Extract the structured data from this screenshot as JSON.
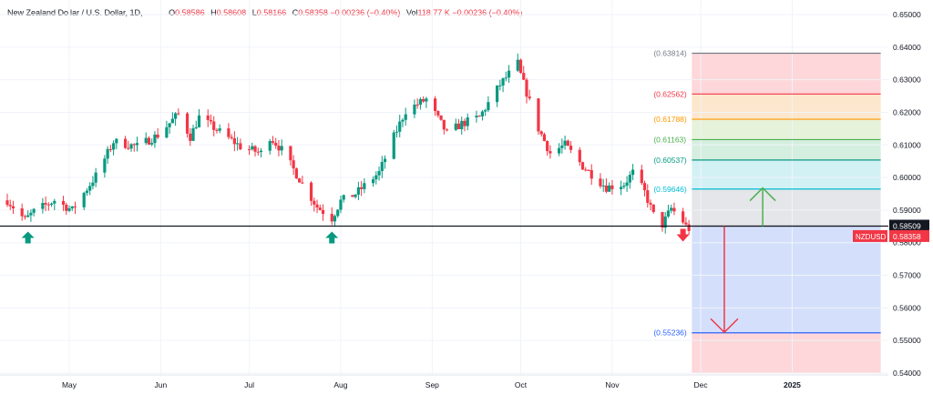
{
  "header": {
    "symbol": "New Zealand Dollar / U.S. Dollar, 1D,",
    "open_label": "O",
    "open": "0.58586",
    "high_label": "H",
    "high": "0.58608",
    "low_label": "L",
    "low": "0.58166",
    "close_label": "C",
    "close": "0.58358",
    "change": "−0.00236 (−0.40%)",
    "vol_label": "Vol",
    "vol": "118.77 K",
    "vol_change": "−0.00236 (−0.40%)"
  },
  "colors": {
    "up": "#089981",
    "down": "#f23645",
    "grid": "#f0f3fa",
    "axis_text": "#131722",
    "support_line": "#131722",
    "up_arrow": "#4caf50",
    "down_arrow": "#f23645",
    "marker": "#089981"
  },
  "chart_data": {
    "type": "candlestick",
    "symbol": "NZDUSD",
    "ylim": [
      0.54,
      0.65
    ],
    "y_ticks": [
      "0.65000",
      "0.64000",
      "0.63000",
      "0.62000",
      "0.61000",
      "0.60000",
      "0.59000",
      "0.58000",
      "0.57000",
      "0.56000",
      "0.55000",
      "0.54000"
    ],
    "x_ticks": [
      {
        "label": "May",
        "date": "2024-05-01"
      },
      {
        "label": "Jun",
        "date": "2024-06-01"
      },
      {
        "label": "Jul",
        "date": "2024-07-01"
      },
      {
        "label": "Aug",
        "date": "2024-08-01"
      },
      {
        "label": "Sep",
        "date": "2024-09-01"
      },
      {
        "label": "Oct",
        "date": "2024-10-01"
      },
      {
        "label": "Nov",
        "date": "2024-11-01"
      },
      {
        "label": "Dec",
        "date": "2024-12-01"
      },
      {
        "label": "2025",
        "date": "2025-01-01"
      }
    ],
    "x_range": [
      "2024-04-10",
      "2025-01-20"
    ],
    "path": [
      [
        "2024-04-10",
        0.593
      ],
      [
        "2024-04-16",
        0.587
      ],
      [
        "2024-04-19",
        0.5895
      ],
      [
        "2024-04-26",
        0.593
      ],
      [
        "2024-05-02",
        0.59
      ],
      [
        "2024-05-10",
        0.6005
      ],
      [
        "2024-05-16",
        0.611
      ],
      [
        "2024-05-24",
        0.6095
      ],
      [
        "2024-05-31",
        0.613
      ],
      [
        "2024-06-07",
        0.6195
      ],
      [
        "2024-06-11",
        0.6125
      ],
      [
        "2024-06-14",
        0.6185
      ],
      [
        "2024-06-21",
        0.614
      ],
      [
        "2024-06-28",
        0.6095
      ],
      [
        "2024-07-05",
        0.6075
      ],
      [
        "2024-07-08",
        0.6125
      ],
      [
        "2024-07-12",
        0.6085
      ],
      [
        "2024-07-17",
        0.601
      ],
      [
        "2024-07-24",
        0.591
      ],
      [
        "2024-07-29",
        0.5875
      ],
      [
        "2024-08-01",
        0.5928
      ],
      [
        "2024-08-06",
        0.595
      ],
      [
        "2024-08-14",
        0.6015
      ],
      [
        "2024-08-19",
        0.6125
      ],
      [
        "2024-08-23",
        0.6205
      ],
      [
        "2024-08-30",
        0.624
      ],
      [
        "2024-09-06",
        0.6135
      ],
      [
        "2024-09-11",
        0.6165
      ],
      [
        "2024-09-17",
        0.6185
      ],
      [
        "2024-09-24",
        0.6285
      ],
      [
        "2024-09-30",
        0.635
      ],
      [
        "2024-10-01",
        0.6315
      ],
      [
        "2024-10-07",
        0.615
      ],
      [
        "2024-10-11",
        0.6075
      ],
      [
        "2024-10-16",
        0.61
      ],
      [
        "2024-10-22",
        0.6035
      ],
      [
        "2024-10-30",
        0.597
      ],
      [
        "2024-11-05",
        0.598
      ],
      [
        "2024-11-08",
        0.6015
      ],
      [
        "2024-11-12",
        0.5955
      ],
      [
        "2024-11-15",
        0.5885
      ],
      [
        "2024-11-18",
        0.5855
      ],
      [
        "2024-11-21",
        0.5905
      ],
      [
        "2024-11-25",
        0.5865
      ],
      [
        "2024-11-27",
        0.58358
      ]
    ],
    "support": {
      "price": 0.58509,
      "label": "0.58509"
    },
    "last_price": {
      "price": 0.58358,
      "label": "0.58358",
      "symbol_tag": "NZDUSD"
    },
    "up_markers": [
      "2024-04-17",
      "2024-07-29"
    ],
    "down_marker": "2024-11-25",
    "projection": {
      "x_start": "2024-11-28",
      "x_end": "2025-01-31",
      "levels": [
        {
          "price": 0.63814,
          "label": "(0.63814)",
          "color": "#787b86"
        },
        {
          "price": 0.62562,
          "label": "(0.62562)",
          "color": "#f23645"
        },
        {
          "price": 0.61788,
          "label": "(0.61788)",
          "color": "#ff9800"
        },
        {
          "price": 0.61163,
          "label": "(0.61163)",
          "color": "#4caf50"
        },
        {
          "price": 0.60537,
          "label": "(0.60537)",
          "color": "#089981"
        },
        {
          "price": 0.59646,
          "label": "(0.59646)",
          "color": "#00bcd4"
        },
        {
          "price": 0.58509,
          "label": "",
          "color": "#787b86"
        },
        {
          "price": 0.55236,
          "label": "(0.55236)",
          "color": "#2962ff"
        }
      ],
      "bands": [
        {
          "from": 0.63814,
          "to": 0.62562,
          "color": "#fdd7d9"
        },
        {
          "from": 0.62562,
          "to": 0.61788,
          "color": "#fde7cc"
        },
        {
          "from": 0.61788,
          "to": 0.61163,
          "color": "#e6f2d9"
        },
        {
          "from": 0.61163,
          "to": 0.60537,
          "color": "#d4eedf"
        },
        {
          "from": 0.60537,
          "to": 0.59646,
          "color": "#d2f1f5"
        },
        {
          "from": 0.59646,
          "to": 0.58509,
          "color": "#e5e6e9"
        },
        {
          "from": 0.58509,
          "to": 0.55236,
          "color": "#d4e0fb"
        },
        {
          "from": 0.55236,
          "to": 0.54,
          "color": "#fdd7d9"
        }
      ],
      "up_arrow": {
        "date": "2024-12-22",
        "from": 0.58509,
        "to": 0.5968
      },
      "down_arrow": {
        "date": "2024-12-09",
        "from": 0.58509,
        "to": 0.5525
      }
    }
  }
}
